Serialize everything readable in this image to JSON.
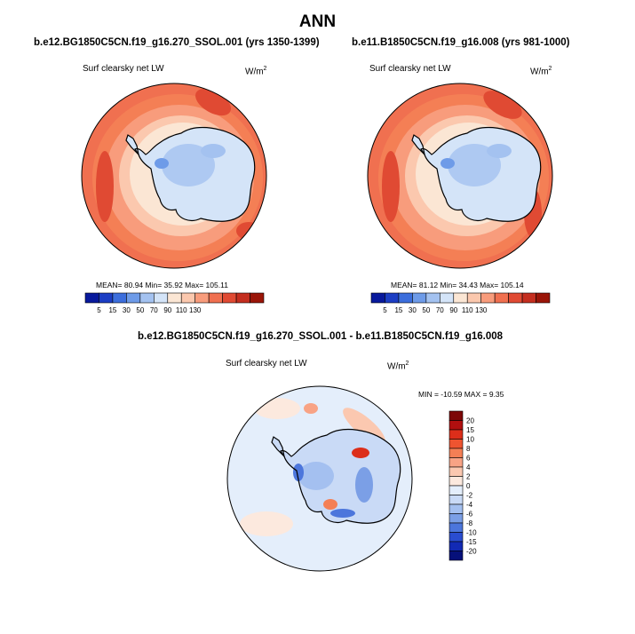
{
  "figure_title": "ANN",
  "chart_data": [
    {
      "type": "heatmap",
      "projection": "south polar stereographic",
      "title": "b.e12.BG1850C5CN.f19_g16.270_SSOL.001 (yrs 1350-1399)",
      "variable": "Surf clearsky net LW",
      "units": "W/m",
      "units_sup": "2",
      "stats": {
        "mean": "80.94",
        "min": "35.92",
        "max": "105.11"
      },
      "stats_text": "MEAN=  80.94  Min=  35.92  Max= 105.11",
      "colorbar": {
        "levels": [
          5,
          15,
          30,
          50,
          70,
          90,
          110,
          130
        ],
        "tick_labels": [
          "5",
          "15",
          "30",
          "50",
          "70",
          "90",
          "110",
          "130"
        ],
        "colors": [
          "#08199c",
          "#1c3ec4",
          "#3c6edc",
          "#6e9be8",
          "#a4c2f0",
          "#d4e4f8",
          "#fbe6d4",
          "#fbc8ae",
          "#f89c7c",
          "#f07050",
          "#e04a33",
          "#c42e1f",
          "#9a1508"
        ]
      }
    },
    {
      "type": "heatmap",
      "projection": "south polar stereographic",
      "title": "b.e11.B1850C5CN.f19_g16.008 (yrs 981-1000)",
      "variable": "Surf clearsky net LW",
      "units": "W/m",
      "units_sup": "2",
      "stats": {
        "mean": "81.12",
        "min": "34.43",
        "max": "105.14"
      },
      "stats_text": "MEAN=  81.12  Min=  34.43  Max= 105.14",
      "colorbar": {
        "levels": [
          5,
          15,
          30,
          50,
          70,
          90,
          110,
          130
        ],
        "tick_labels": [
          "5",
          "15",
          "30",
          "50",
          "70",
          "90",
          "110",
          "130"
        ],
        "colors": [
          "#08199c",
          "#1c3ec4",
          "#3c6edc",
          "#6e9be8",
          "#a4c2f0",
          "#d4e4f8",
          "#fbe6d4",
          "#fbc8ae",
          "#f89c7c",
          "#f07050",
          "#e04a33",
          "#c42e1f",
          "#9a1508"
        ]
      }
    },
    {
      "type": "heatmap",
      "projection": "south polar stereographic",
      "title": "b.e12.BG1850C5CN.f19_g16.270_SSOL.001 - b.e11.B1850C5CN.f19_g16.008",
      "variable": "Surf clearsky net LW",
      "units": "W/m",
      "units_sup": "2",
      "stats": {
        "min": "-10.59",
        "max": "9.35"
      },
      "stats_text": "MIN = -10.59 MAX =   9.35",
      "colorbar": {
        "levels": [
          20,
          15,
          10,
          8,
          6,
          4,
          2,
          0,
          -2,
          -4,
          -6,
          -8,
          -10,
          -15,
          -20
        ],
        "tick_labels": [
          "20",
          "15",
          "10",
          "8",
          "6",
          "4",
          "2",
          "0",
          "-2",
          "-4",
          "-6",
          "-8",
          "-10",
          "-15",
          "-20"
        ],
        "colors": [
          "#7d0707",
          "#b00f0f",
          "#dc2e1a",
          "#ee5430",
          "#f47f55",
          "#f8a385",
          "#fbc8b0",
          "#fce9de",
          "#e4eefb",
          "#c9daf6",
          "#a4c0f0",
          "#7b9fe6",
          "#4c76dc",
          "#2a4dd0",
          "#122ab4",
          "#06107a"
        ]
      }
    }
  ]
}
